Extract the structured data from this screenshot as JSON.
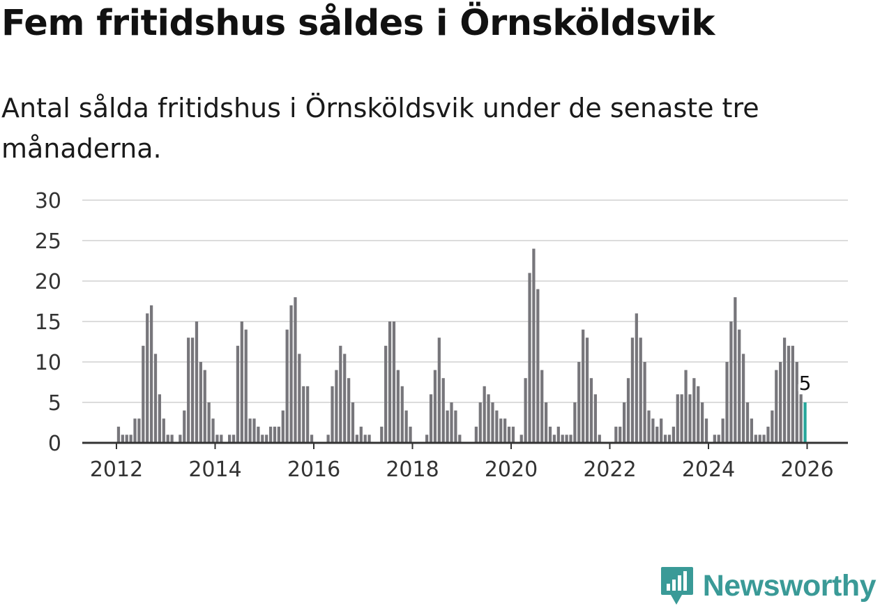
{
  "header": {
    "title": "Fem fritidshus såldes i Örnsköldsvik",
    "subtitle": "Antal sålda fritidshus i Örnsköldsvik under de senaste tre månaderna."
  },
  "brand": {
    "name": "Newsworthy",
    "icon": "newsworthy-logo-icon"
  },
  "colors": {
    "bar": "#77767b",
    "highlight": "#26a69a",
    "grid": "#dcdcdc",
    "axis": "#333333"
  },
  "chart_data": {
    "type": "bar",
    "title": "Antal sålda fritidshus i Örnsköldsvik under de senaste tre månaderna.",
    "xlabel": "",
    "ylabel": "",
    "ylim": [
      0,
      30
    ],
    "yticks": [
      "0",
      "5",
      "10",
      "15",
      "20",
      "25",
      "30"
    ],
    "xticks": [
      "2012",
      "2014",
      "2016",
      "2018",
      "2020",
      "2022",
      "2024",
      "2026"
    ],
    "x_start": "2012-01",
    "x_end": "2026-01",
    "grid": true,
    "highlight_label": "5",
    "series": [
      {
        "name": "Sålda fritidshus",
        "values": [
          2,
          1,
          1,
          1,
          3,
          3,
          12,
          16,
          17,
          11,
          6,
          3,
          1,
          1,
          0,
          1,
          4,
          13,
          13,
          15,
          10,
          9,
          5,
          3,
          1,
          1,
          0,
          1,
          1,
          12,
          15,
          14,
          3,
          3,
          2,
          1,
          1,
          2,
          2,
          2,
          4,
          14,
          17,
          18,
          11,
          7,
          7,
          1,
          0,
          0,
          0,
          1,
          7,
          9,
          12,
          11,
          8,
          5,
          1,
          2,
          1,
          1,
          0,
          0,
          2,
          12,
          15,
          15,
          9,
          7,
          4,
          2,
          0,
          0,
          0,
          1,
          6,
          9,
          13,
          8,
          4,
          5,
          4,
          1,
          0,
          0,
          0,
          2,
          5,
          7,
          6,
          5,
          4,
          3,
          3,
          2,
          2,
          0,
          1,
          8,
          21,
          24,
          19,
          9,
          5,
          2,
          1,
          2,
          1,
          1,
          1,
          5,
          10,
          14,
          13,
          8,
          6,
          1,
          0,
          0,
          0,
          2,
          2,
          5,
          8,
          13,
          16,
          13,
          10,
          4,
          3,
          2,
          3,
          1,
          1,
          2,
          6,
          6,
          9,
          6,
          8,
          7,
          5,
          3,
          0,
          1,
          1,
          3,
          10,
          15,
          18,
          14,
          11,
          5,
          3,
          1,
          1,
          1,
          2,
          4,
          9,
          10,
          13,
          12,
          12,
          10,
          6,
          5
        ]
      }
    ]
  }
}
